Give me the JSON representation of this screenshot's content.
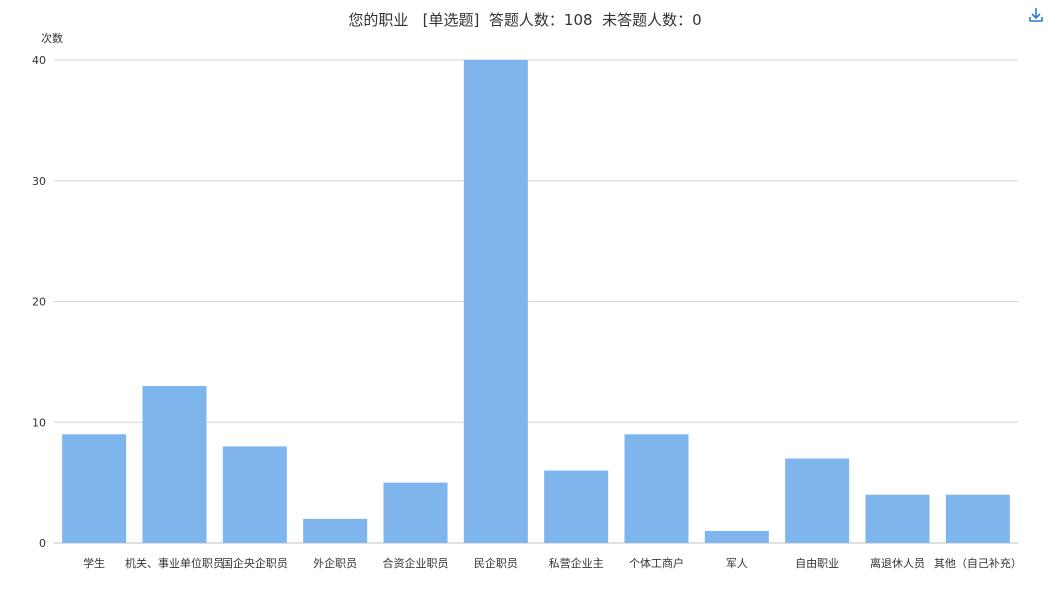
{
  "title": {
    "question": "您的职业",
    "type_tag": "[单选题]",
    "answered": "答题人数：108",
    "unanswered": "未答题人数：0"
  },
  "toolbar": {
    "download_icon": "download-icon"
  },
  "chart_data": {
    "type": "bar",
    "ylabel": "次数",
    "xlabel": "",
    "ylim": [
      0,
      40
    ],
    "yticks": [
      0,
      10,
      20,
      30,
      40
    ],
    "grid": true,
    "legend": "none",
    "bar_color": "#7eb5ec",
    "categories": [
      "学生",
      "机关、事业单位职员",
      "国企央企职员",
      "外企职员",
      "合资企业职员",
      "民企职员",
      "私营企业主",
      "个体工商户",
      "军人",
      "自由职业",
      "离退休人员",
      "其他（自己补充）"
    ],
    "values": [
      9,
      13,
      8,
      2,
      5,
      40,
      6,
      9,
      1,
      7,
      4,
      4
    ]
  }
}
